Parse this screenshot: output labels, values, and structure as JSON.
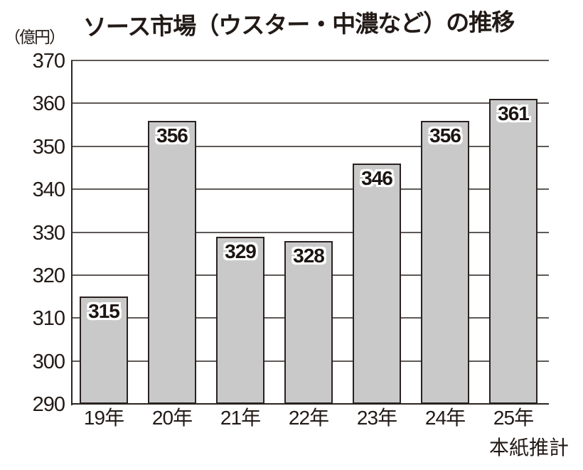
{
  "chart_data": {
    "type": "bar",
    "title": "ソース市場（ウスター・中濃など）の推移",
    "unit_label": "（億円）",
    "categories": [
      "19年",
      "20年",
      "21年",
      "22年",
      "23年",
      "24年",
      "25年"
    ],
    "values": [
      315,
      356,
      329,
      328,
      346,
      356,
      361
    ],
    "footnote": "本紙推計",
    "footnote_applies_to": "25年",
    "ylabel": "（億円）",
    "xlabel": "",
    "ylim": [
      290,
      370
    ],
    "yticks": [
      370,
      360,
      350,
      340,
      330,
      320,
      310,
      300,
      290
    ],
    "grid": "horizontal",
    "legend": "none",
    "colors": {
      "bar_fill": "#c9c9ca",
      "bar_border": "#2a2120",
      "gridline": "#5f5a57",
      "axis": "#2a2422",
      "text": "#221a16",
      "value_label_text": "#1c1512",
      "value_label_halo": "#ffffff",
      "background": "#ffffff"
    }
  }
}
